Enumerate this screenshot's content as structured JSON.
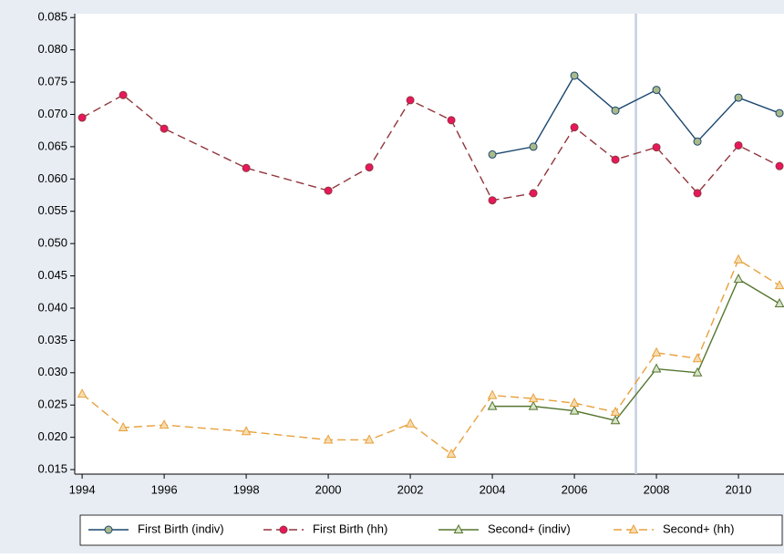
{
  "chart_data": {
    "type": "line",
    "x": [
      1994,
      1995,
      1996,
      1998,
      2000,
      2001,
      2002,
      2003,
      2004,
      2005,
      2006,
      2007,
      2008,
      2009,
      2010,
      2011
    ],
    "series": [
      {
        "name": "First Birth (indiv)",
        "color": "#1a476f",
        "marker": "circle",
        "marker_fill": "#a9b98a",
        "dashed": false,
        "values": [
          null,
          null,
          null,
          null,
          null,
          null,
          null,
          null,
          0.0638,
          0.065,
          0.076,
          0.0706,
          0.0738,
          0.0658,
          0.0726,
          0.0702
        ]
      },
      {
        "name": "First Birth (hh)",
        "color": "#90353b",
        "marker": "circle",
        "marker_fill": "#e8175d",
        "dashed": true,
        "values": [
          0.0695,
          0.073,
          0.0678,
          0.0617,
          0.0582,
          0.0618,
          0.0722,
          0.0691,
          0.0567,
          0.0578,
          0.068,
          0.063,
          0.0649,
          0.0578,
          0.0652,
          0.062
        ]
      },
      {
        "name": "Second+ (indiv)",
        "color": "#55752f",
        "marker": "triangle",
        "marker_fill": "#d8e4c8",
        "dashed": false,
        "values": [
          null,
          null,
          null,
          null,
          null,
          null,
          null,
          null,
          0.0248,
          0.0248,
          0.0241,
          0.0226,
          0.0306,
          0.03,
          0.0445,
          0.0407
        ]
      },
      {
        "name": "Second+ (hh)",
        "color": "#e8a03b",
        "marker": "triangle",
        "marker_fill": "#f6dcb0",
        "dashed": true,
        "values": [
          0.0267,
          0.0215,
          0.0219,
          0.0209,
          0.0196,
          0.0196,
          0.0221,
          0.0174,
          0.0265,
          0.026,
          0.0253,
          0.0239,
          0.0331,
          0.0322,
          0.0475,
          0.0435
        ]
      }
    ],
    "xlim": [
      1993.82,
      2011.11
    ],
    "xticks": [
      1994,
      1996,
      1998,
      2000,
      2002,
      2004,
      2006,
      2008,
      2010
    ],
    "ylim": [
      0.0143,
      0.0856
    ],
    "yticks": [
      {
        "value": 0.015,
        "label": "0.015"
      },
      {
        "value": 0.02,
        "label": "0.020"
      },
      {
        "value": 0.025,
        "label": "0.025"
      },
      {
        "value": 0.03,
        "label": "0.030"
      },
      {
        "value": 0.035,
        "label": "0.035"
      },
      {
        "value": 0.04,
        "label": "0.040"
      },
      {
        "value": 0.045,
        "label": "0.045"
      },
      {
        "value": 0.05,
        "label": "0.050"
      },
      {
        "value": 0.055,
        "label": "0.055"
      },
      {
        "value": 0.06,
        "label": "0.060"
      },
      {
        "value": 0.065,
        "label": "0.065"
      },
      {
        "value": 0.07,
        "label": "0.070"
      },
      {
        "value": 0.075,
        "label": "0.075"
      },
      {
        "value": 0.08,
        "label": "0.080"
      },
      {
        "value": 0.085,
        "label": "0.085"
      }
    ],
    "vline": 2007.5,
    "vline_color": "#c3cfe0",
    "grid": false
  }
}
